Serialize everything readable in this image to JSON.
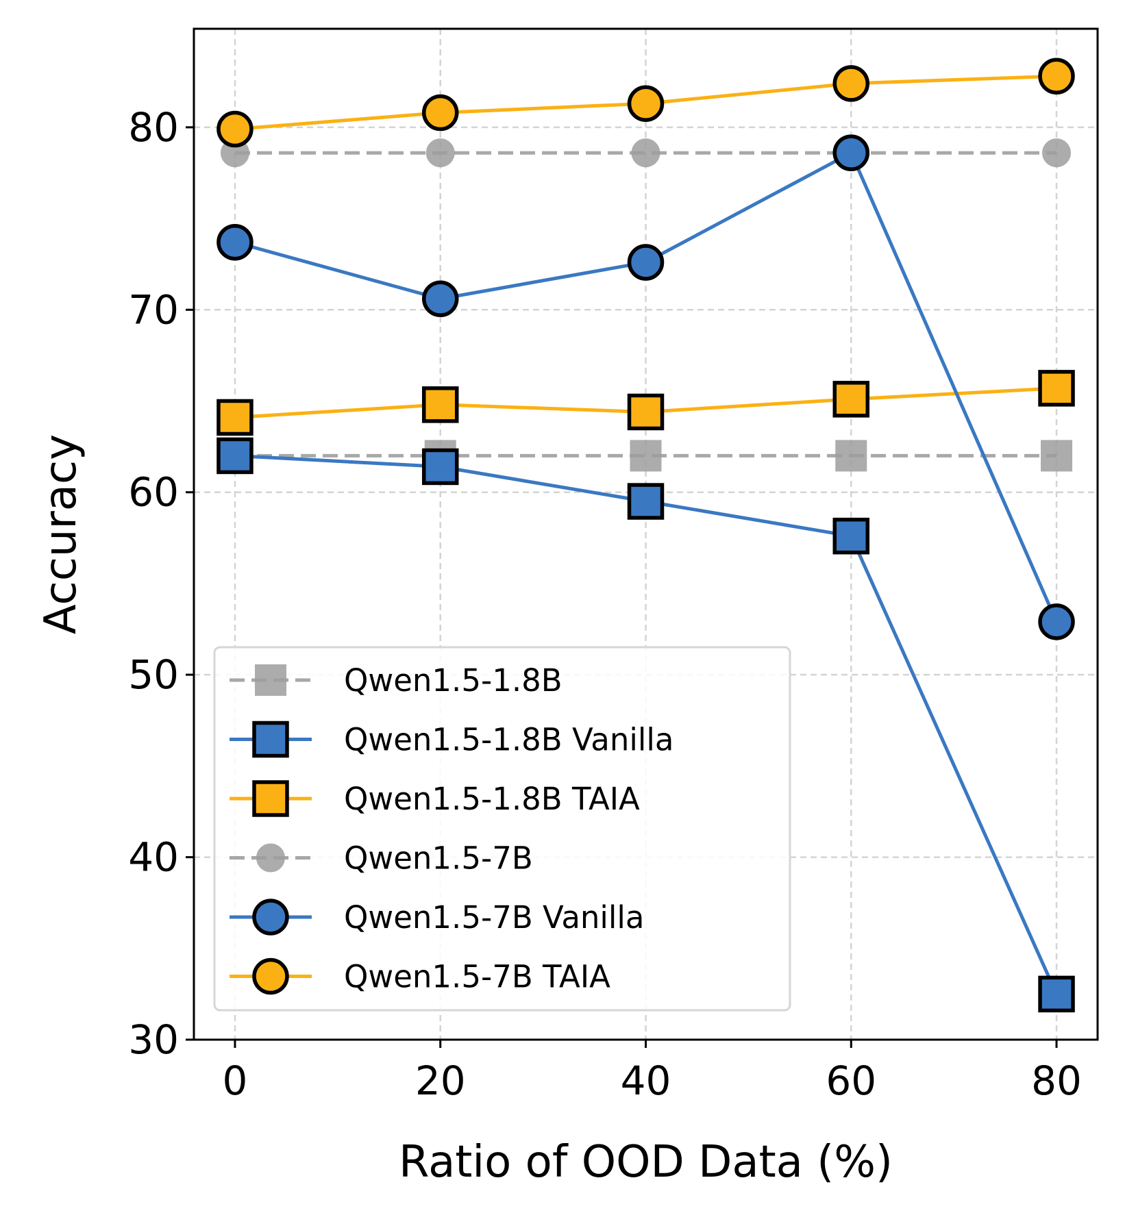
{
  "chart_data": {
    "type": "line",
    "xlabel": "Ratio of OOD Data (%)",
    "ylabel": "Accuracy",
    "x": [
      0,
      20,
      40,
      60,
      80
    ],
    "x_ticks": [
      "0",
      "20",
      "40",
      "60",
      "80"
    ],
    "y_ticks": [
      "30",
      "40",
      "50",
      "60",
      "70",
      "80"
    ],
    "xlim": [
      -4,
      84
    ],
    "ylim": [
      30,
      85.4
    ],
    "grid": true,
    "legend_position": "lower-left",
    "series": [
      {
        "name": "Qwen1.5-1.8B",
        "values": [
          62.0,
          62.0,
          62.0,
          62.0,
          62.0
        ],
        "color": "#9e9e9e",
        "marker": "square",
        "dashed": true
      },
      {
        "name": "Qwen1.5-1.8B Vanilla",
        "values": [
          62.0,
          61.4,
          59.5,
          57.6,
          32.5
        ],
        "color": "#3a78c2",
        "marker": "square",
        "dashed": false
      },
      {
        "name": "Qwen1.5-1.8B TAIA",
        "values": [
          64.1,
          64.8,
          64.4,
          65.1,
          65.7
        ],
        "color": "#fbb114",
        "marker": "square",
        "dashed": false
      },
      {
        "name": "Qwen1.5-7B",
        "values": [
          78.6,
          78.6,
          78.6,
          78.6,
          78.6
        ],
        "color": "#9e9e9e",
        "marker": "circle",
        "dashed": true
      },
      {
        "name": "Qwen1.5-7B Vanilla",
        "values": [
          73.7,
          70.6,
          72.6,
          78.6,
          52.9
        ],
        "color": "#3a78c2",
        "marker": "circle",
        "dashed": false
      },
      {
        "name": "Qwen1.5-7B TAIA",
        "values": [
          79.9,
          80.8,
          81.3,
          82.4,
          82.8
        ],
        "color": "#fbb114",
        "marker": "circle",
        "dashed": false
      }
    ]
  }
}
